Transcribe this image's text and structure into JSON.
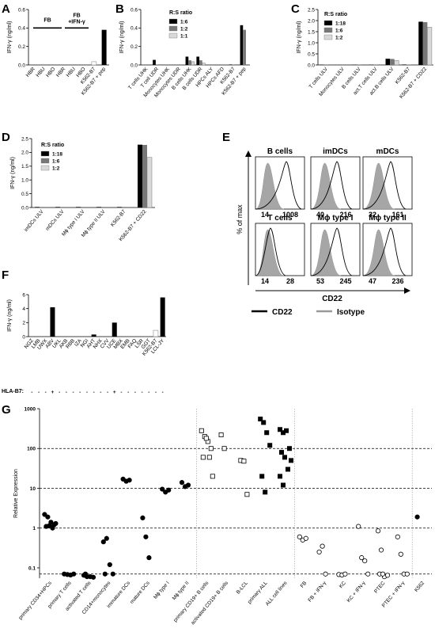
{
  "figure": {
    "panels": [
      "A",
      "B",
      "C",
      "D",
      "E",
      "F",
      "G"
    ],
    "ifn_axis_label": "IFN-γ (ng/ml)"
  },
  "chart_data": [
    {
      "panel": "A",
      "type": "bar",
      "ylabel": "IFN-γ (ng/ml)",
      "ylim": [
        0,
        0.6
      ],
      "yticks": [
        "0.0",
        "0.2",
        "0.4",
        "0.6"
      ],
      "categories": [
        "HBR",
        "HBU",
        "HBO",
        "HBR",
        "HBU",
        "HBO",
        "K562-B7",
        "K562-B7 + pep"
      ],
      "values": [
        0.0,
        0.0,
        0.0,
        0.0,
        0.0,
        0.0,
        0.035,
        0.38
      ],
      "group_labels": [
        "FB",
        "FB +IFN-γ"
      ]
    },
    {
      "panel": "B",
      "type": "bar",
      "ylabel": "IFN-γ (ng/ml)",
      "ylim": [
        0,
        0.6
      ],
      "yticks": [
        "0.0",
        "0.2",
        "0.4",
        "0.6"
      ],
      "legend_title": "R:S ratio",
      "categories": [
        "T cells UHK",
        "T cell UDR",
        "Monocytes UHK",
        "Monocytes UDR",
        "B cells UHK",
        "B cells UDR",
        "HPCs ALY",
        "HPCs AFD",
        "K562-B7",
        "K562-B7 + pep"
      ],
      "series": [
        {
          "name": "1:6",
          "color": "#000000",
          "values": [
            0.0,
            0.055,
            0.0,
            0.0,
            0.09,
            0.09,
            0.0,
            0.0,
            0.005,
            0.43
          ]
        },
        {
          "name": "1:2",
          "color": "#777777",
          "values": [
            0.0,
            0.005,
            0.0,
            0.0,
            0.05,
            0.05,
            0.0,
            0.0,
            0.005,
            0.38
          ]
        },
        {
          "name": "1:1",
          "color": "#d9d9d9",
          "values": [
            0.0,
            0.005,
            0.0,
            0.0,
            0.035,
            0.02,
            0.0,
            0.0,
            0.005,
            0.0
          ]
        }
      ]
    },
    {
      "panel": "C",
      "type": "bar",
      "ylabel": "IFN-γ (ng/ml)",
      "ylim": [
        0,
        2.5
      ],
      "yticks": [
        "0.0",
        "0.5",
        "1.0",
        "1.5",
        "2.0",
        "2.5"
      ],
      "legend_title": "R:S ratio",
      "categories": [
        "T cells ULV",
        "Monocytes ULV",
        "B cells ULV",
        "act.T cells ULV",
        "act.B cells ULV",
        "K562-B7",
        "K562-B7 + CD22"
      ],
      "series": [
        {
          "name": "1:18",
          "color": "#000000",
          "values": [
            0.01,
            0.0,
            0.01,
            0.01,
            0.28,
            0.02,
            1.95
          ]
        },
        {
          "name": "1:6",
          "color": "#777777",
          "values": [
            0.01,
            0.0,
            0.01,
            0.01,
            0.27,
            0.02,
            1.93
          ]
        },
        {
          "name": "1:2",
          "color": "#d9d9d9",
          "values": [
            0.0,
            0.0,
            0.0,
            0.0,
            0.2,
            0.0,
            1.7
          ]
        }
      ]
    },
    {
      "panel": "D",
      "type": "bar",
      "ylabel": "IFN-γ (ng/ml)",
      "ylim": [
        0,
        2.5
      ],
      "yticks": [
        "0.0",
        "0.5",
        "1.0",
        "1.5",
        "2.0",
        "2.5"
      ],
      "legend_title": "R:S ratio",
      "categories": [
        "imDCs ULV",
        "mDCs ULV",
        "Mϕ type I ULV",
        "Mϕ type II ULV",
        "K562-B7",
        "K562-B7 + CD22"
      ],
      "series": [
        {
          "name": "1:18",
          "color": "#000000",
          "values": [
            0.02,
            0.02,
            0.02,
            0.02,
            0.02,
            2.28
          ]
        },
        {
          "name": "1:6",
          "color": "#777777",
          "values": [
            0.02,
            0.02,
            0.02,
            0.02,
            0.02,
            2.27
          ]
        },
        {
          "name": "1:2",
          "color": "#d9d9d9",
          "values": [
            0.0,
            0.0,
            0.0,
            0.0,
            0.0,
            1.82
          ]
        }
      ]
    },
    {
      "panel": "E",
      "type": "histogram",
      "ylabel": "% of max",
      "xlabel": "CD22",
      "legend": [
        {
          "name": "CD22",
          "color": "#000000"
        },
        {
          "name": "Isotype",
          "color": "#999999"
        }
      ],
      "cells": [
        {
          "name": "B cells",
          "isotype_mfi": "14",
          "cd22_mfi": "1008"
        },
        {
          "name": "imDCs",
          "isotype_mfi": "40",
          "cd22_mfi": "216"
        },
        {
          "name": "mDCs",
          "isotype_mfi": "32",
          "cd22_mfi": "161"
        },
        {
          "name": "T cells",
          "isotype_mfi": "14",
          "cd22_mfi": "28"
        },
        {
          "name": "Mϕ type I",
          "isotype_mfi": "53",
          "cd22_mfi": "245"
        },
        {
          "name": "Mϕ type II",
          "isotype_mfi": "47",
          "cd22_mfi": "236"
        }
      ]
    },
    {
      "panel": "F",
      "type": "bar",
      "ylabel": "IFN-γ (ng/ml)",
      "ylim": [
        0,
        6
      ],
      "yticks": [
        "0",
        "2",
        "4",
        "6"
      ],
      "row_label": "HLA-B7:",
      "categories": [
        "NGZ",
        "LMB",
        "UWX",
        "ABV",
        "UKL",
        "AKB",
        "RBB",
        "IZA",
        "NGI",
        "AHT",
        "NHX",
        "CVV",
        "UCE",
        "MBX",
        "EMB",
        "FAQ",
        "LSR",
        "GGT",
        "K562-B7",
        "LCL-JY"
      ],
      "values": [
        0.0,
        0.0,
        0.0,
        4.2,
        0.0,
        0.0,
        0.0,
        0.0,
        0.0,
        0.3,
        0.0,
        0.0,
        2.0,
        0.0,
        0.0,
        0.0,
        0.0,
        0.0,
        0.9,
        5.6
      ],
      "hla_b7_positive": [
        "ABV",
        "UCE"
      ]
    },
    {
      "panel": "G",
      "type": "scatter",
      "ylabel": "Relative Expression",
      "yscale": "log",
      "yticks": [
        "0.1",
        "1",
        "10",
        "100",
        "1000"
      ],
      "ylim": [
        0.055,
        1000
      ],
      "reference_lines": [
        0.07,
        1,
        10,
        100
      ],
      "categories": [
        "primary CD34+HPCs",
        "primary T cells",
        "activated T cells",
        "CD14+monocytes",
        "immature DCs",
        "mature DCs",
        "Mϕ type I",
        "Mϕ type II",
        "primary CD19+ B cells",
        "activated CD19+ B cells",
        "B-LCL",
        "primary ALL",
        "ALL cell lines",
        "FB",
        "FB + IFN-γ",
        "KC",
        "KC + IFN-γ",
        "PTEC",
        "PTEC + IFN-γ",
        "K562"
      ],
      "series": [
        {
          "category": "primary CD34+HPCs",
          "marker": "filled-circle",
          "values": [
            2.2,
            1.9,
            1.4,
            1.2,
            1.1,
            1.15,
            1.0,
            1.3
          ]
        },
        {
          "category": "primary T cells",
          "marker": "filled-circle",
          "values": [
            0.07,
            0.068,
            0.066,
            0.07
          ]
        },
        {
          "category": "activated T cells",
          "marker": "filled-circle",
          "values": [
            0.065,
            0.06,
            0.06,
            0.058,
            0.07
          ]
        },
        {
          "category": "CD14+monocytes",
          "marker": "filled-circle",
          "values": [
            0.45,
            0.55,
            0.12,
            0.07,
            0.07
          ]
        },
        {
          "category": "immature DCs",
          "marker": "filled-circle",
          "values": [
            17,
            15,
            16
          ]
        },
        {
          "category": "mature DCs",
          "marker": "filled-circle",
          "values": [
            1.8,
            0.6,
            0.18
          ]
        },
        {
          "category": "Mϕ type I",
          "marker": "filled-circle",
          "values": [
            9.5,
            8.0,
            9.0
          ]
        },
        {
          "category": "Mϕ type II",
          "marker": "filled-circle",
          "values": [
            14,
            11,
            12
          ]
        },
        {
          "category": "primary CD19+ B cells",
          "marker": "open-square",
          "values": [
            280,
            200,
            150,
            100,
            60,
            180,
            60,
            20
          ]
        },
        {
          "category": "activated CD19+ B cells",
          "marker": "open-square",
          "values": [
            220,
            100
          ]
        },
        {
          "category": "B-LCL",
          "marker": "open-square",
          "values": [
            50,
            48,
            7
          ]
        },
        {
          "category": "primary ALL",
          "marker": "filled-square",
          "values": [
            550,
            450,
            250,
            120,
            20,
            8
          ]
        },
        {
          "category": "ALL cell lines",
          "marker": "filled-square",
          "values": [
            300,
            250,
            280,
            100,
            80,
            60,
            30,
            50,
            20,
            12
          ]
        },
        {
          "category": "FB",
          "marker": "open-circle",
          "values": [
            0.6,
            0.5,
            0.55
          ]
        },
        {
          "category": "FB + IFN-γ",
          "marker": "open-circle",
          "values": [
            0.25,
            0.35,
            0.07
          ]
        },
        {
          "category": "KC",
          "marker": "open-circle",
          "values": [
            0.068,
            0.066,
            0.07
          ]
        },
        {
          "category": "KC + IFN-γ",
          "marker": "open-circle",
          "values": [
            1.1,
            0.18,
            0.15,
            0.07
          ]
        },
        {
          "category": "PTEC",
          "marker": "open-circle",
          "values": [
            0.85,
            0.28,
            0.06,
            0.065,
            0.07,
            0.07
          ]
        },
        {
          "category": "PTEC + IFN-γ",
          "marker": "open-circle",
          "values": [
            0.6,
            0.22,
            0.07,
            0.07
          ]
        },
        {
          "category": "K562",
          "marker": "filled-circle",
          "values": [
            1.9
          ]
        }
      ],
      "divider_after": [
        "Mϕ type II",
        "ALL cell lines",
        "PTEC + IFN-γ"
      ]
    }
  ]
}
